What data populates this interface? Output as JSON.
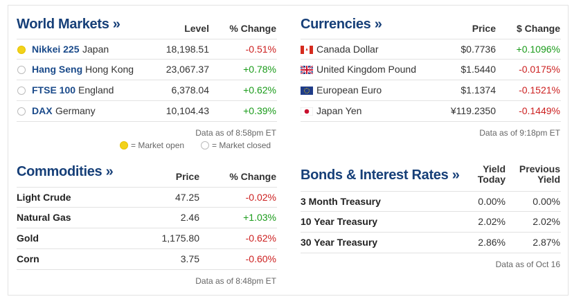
{
  "world_markets": {
    "title": "World Markets »",
    "columns": [
      "Level",
      "% Change"
    ],
    "rows": [
      {
        "name": "Nikkei 225",
        "region": "Japan",
        "market_open": true,
        "cells": [
          "18,198.51",
          "-0.51%"
        ]
      },
      {
        "name": "Hang Seng",
        "region": "Hong Kong",
        "market_open": false,
        "cells": [
          "23,067.37",
          "+0.78%"
        ]
      },
      {
        "name": "FTSE 100",
        "region": "England",
        "market_open": false,
        "cells": [
          "6,378.04",
          "+0.62%"
        ]
      },
      {
        "name": "DAX",
        "region": "Germany",
        "market_open": false,
        "cells": [
          "10,104.43",
          "+0.39%"
        ]
      }
    ],
    "note": "Data as of 8:58pm ET",
    "legend": [
      "= Market open",
      "= Market closed"
    ]
  },
  "currencies": {
    "title": "Currencies »",
    "columns": [
      "Price",
      "$ Change"
    ],
    "rows": [
      {
        "name": "Canada Dollar",
        "flag": "ca",
        "cells": [
          "$0.7736",
          "+0.1096%"
        ]
      },
      {
        "name": "United Kingdom Pound",
        "flag": "uk",
        "cells": [
          "$1.5440",
          "-0.0175%"
        ]
      },
      {
        "name": "European Euro",
        "flag": "eu",
        "cells": [
          "$1.1374",
          "-0.1521%"
        ]
      },
      {
        "name": "Japan Yen",
        "flag": "jp",
        "cells": [
          "¥119.2350",
          "-0.1449%"
        ]
      }
    ],
    "note": "Data as of 9:18pm ET"
  },
  "commodities": {
    "title": "Commodities »",
    "columns": [
      "Price",
      "% Change"
    ],
    "rows": [
      {
        "name": "Light Crude",
        "cells": [
          "47.25",
          "-0.02%"
        ]
      },
      {
        "name": "Natural Gas",
        "cells": [
          "2.46",
          "+1.03%"
        ]
      },
      {
        "name": "Gold",
        "cells": [
          "1,175.80",
          "-0.62%"
        ]
      },
      {
        "name": "Corn",
        "cells": [
          "3.75",
          "-0.60%"
        ]
      }
    ],
    "note": "Data as of 8:48pm ET"
  },
  "bonds": {
    "title": "Bonds & Interest Rates »",
    "columns": [
      "Yield Today",
      "Previous Yield"
    ],
    "rows": [
      {
        "name": "3 Month Treasury",
        "cells": [
          "0.00%",
          "0.00%"
        ]
      },
      {
        "name": "10 Year Treasury",
        "cells": [
          "2.02%",
          "2.02%"
        ]
      },
      {
        "name": "30 Year Treasury",
        "cells": [
          "2.86%",
          "2.87%"
        ]
      }
    ],
    "note": "Data as of Oct 16"
  }
}
